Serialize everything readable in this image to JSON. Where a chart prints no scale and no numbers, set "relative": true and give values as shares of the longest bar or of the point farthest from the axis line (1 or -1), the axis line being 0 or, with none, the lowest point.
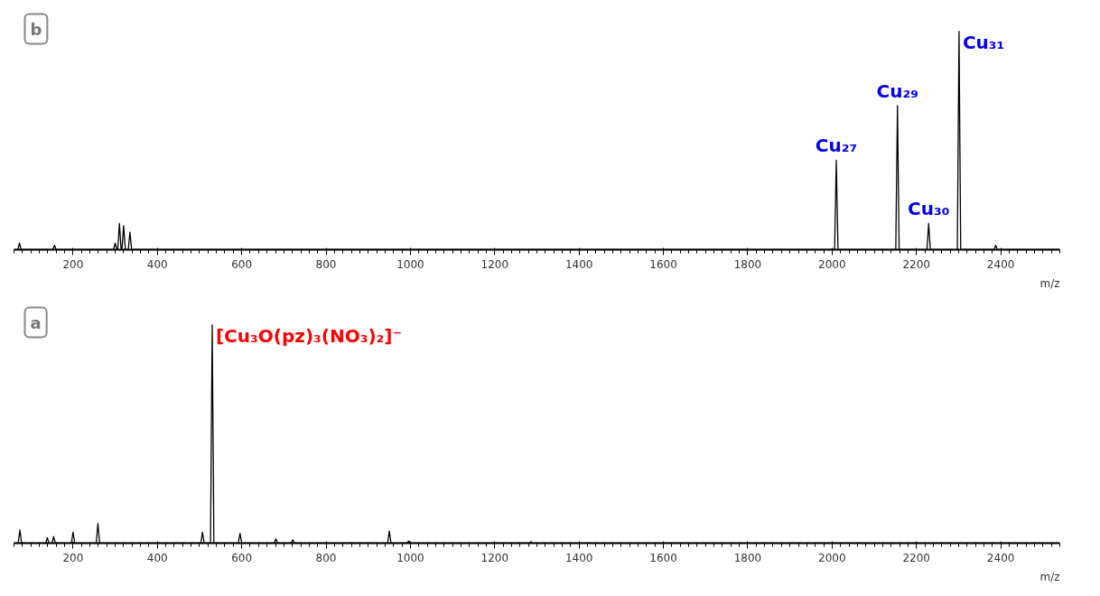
{
  "chart_data": [
    {
      "type": "line",
      "title": "b",
      "xlabel": "m/z",
      "relative": true,
      "xlim": [
        60,
        2540
      ],
      "xticks": [
        200,
        400,
        600,
        800,
        1000,
        1200,
        1400,
        1600,
        1800,
        2000,
        2200,
        2400
      ],
      "tick_labels": "x",
      "grid": false,
      "marker": "none",
      "line_style": "solid",
      "series": [
        {
          "color": "#000000",
          "x": [
            60,
            69,
            73,
            77,
            152,
            156,
            160,
            296,
            300,
            304,
            306,
            310,
            314,
            316,
            320,
            324,
            331,
            335,
            339,
            2006,
            2010,
            2014,
            2151,
            2155,
            2159,
            2225,
            2229,
            2233,
            2297,
            2301,
            2305,
            2384,
            2388,
            2392,
            2540
          ],
          "values": [
            0,
            0,
            0.03,
            0,
            0,
            0.02,
            0,
            0,
            0.03,
            0,
            0,
            0.12,
            0,
            0,
            0.11,
            0,
            0,
            0.08,
            0,
            0,
            0.41,
            0,
            0,
            0.66,
            0,
            0,
            0.12,
            0,
            0,
            1.0,
            0,
            0,
            0.02,
            0,
            0
          ]
        }
      ],
      "annotations": [
        {
          "text": "Cu₂₇",
          "x": 2010,
          "y": 0.41
        },
        {
          "text": "Cu₂₉",
          "x": 2155,
          "y": 0.66
        },
        {
          "text": "Cu₃₀",
          "x": 2229,
          "y": 0.12
        },
        {
          "text": "Cu₃₁",
          "x": 2301,
          "y": 1.0
        }
      ]
    },
    {
      "type": "line",
      "title": "a",
      "xlabel": "m/z",
      "relative": true,
      "xlim": [
        60,
        2540
      ],
      "xticks": [
        200,
        400,
        600,
        800,
        1000,
        1200,
        1400,
        1600,
        1800,
        2000,
        2200,
        2400
      ],
      "tick_labels": "x",
      "grid": false,
      "marker": "none",
      "line_style": "solid",
      "series": [
        {
          "color": "#000000",
          "x": [
            60,
            70,
            74,
            78,
            135,
            139,
            143,
            150,
            154,
            158,
            196,
            200,
            204,
            255,
            259,
            263,
            503,
            507,
            511,
            526,
            530,
            534,
            592,
            596,
            600,
            677,
            681,
            685,
            717,
            721,
            725,
            946,
            950,
            954,
            992,
            996,
            1000,
            1282,
            1286,
            1290,
            2540
          ],
          "values": [
            0,
            0,
            0.06,
            0,
            0,
            0.025,
            0,
            0,
            0.03,
            0,
            0,
            0.05,
            0,
            0,
            0.09,
            0,
            0,
            0.05,
            0,
            0,
            1.0,
            0,
            0,
            0.045,
            0,
            0,
            0.02,
            0,
            0,
            0.015,
            0,
            0,
            0.055,
            0,
            0,
            0.01,
            0,
            0,
            0.007,
            0,
            0
          ]
        }
      ],
      "annotations": [
        {
          "text": "[Cu₃O(pz)₃(NO₃)₂]⁻",
          "x": 530,
          "y": 1.0
        }
      ]
    }
  ]
}
